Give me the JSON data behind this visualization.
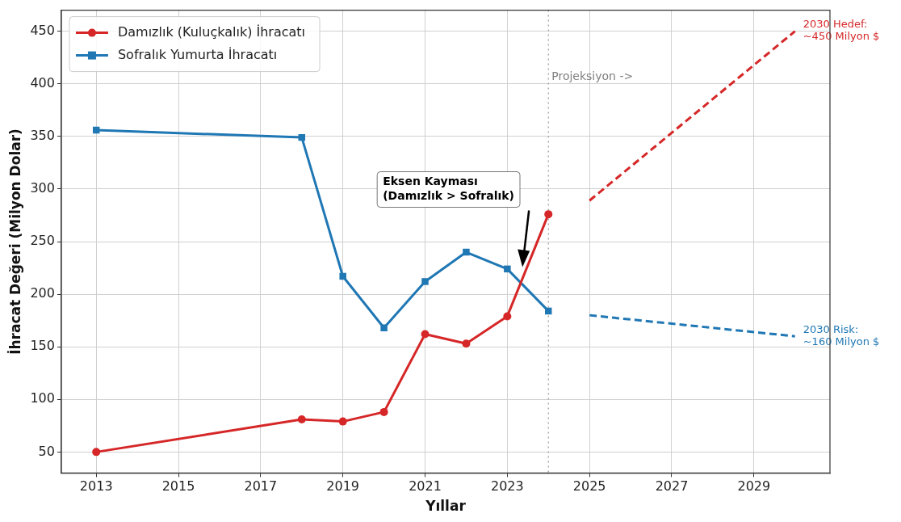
{
  "chart_data": {
    "type": "line",
    "xlabel": "Yıllar",
    "ylabel": "İhracat Değeri (Milyon Dolar)",
    "xlim": [
      2012.15,
      2030.85
    ],
    "ylim": [
      30,
      470
    ],
    "xticks": [
      2013,
      2015,
      2017,
      2019,
      2021,
      2023,
      2025,
      2027,
      2029
    ],
    "yticks": [
      50,
      100,
      150,
      200,
      250,
      300,
      350,
      400,
      450
    ],
    "grid": true,
    "legend": "top left",
    "series": [
      {
        "name": "Damızlık (Kuluçkalık) İhracatı",
        "color": "#d62728",
        "marker": "circle",
        "line_style": "solid",
        "x": [
          2013,
          2018,
          2019,
          2020,
          2021,
          2022,
          2023,
          2024
        ],
        "values": [
          50,
          81,
          79,
          88,
          162,
          153,
          179,
          276
        ]
      },
      {
        "name": "Sofralık Yumurta İhracatı",
        "color": "#1f77b4",
        "marker": "square",
        "line_style": "solid",
        "x": [
          2013,
          2018,
          2019,
          2020,
          2021,
          2022,
          2023,
          2024
        ],
        "values": [
          356,
          349,
          217,
          168,
          212,
          240,
          224,
          184
        ]
      },
      {
        "name": "2030 Hedef:\n~450 Milyon $",
        "color": "#d62728",
        "marker": "none",
        "line_style": "dashed",
        "x": [
          2025,
          2030
        ],
        "values": [
          289,
          450
        ]
      },
      {
        "name": "2030 Risk:\n~160 Milyon $",
        "color": "#1f77b4",
        "marker": "none",
        "line_style": "dashed",
        "x": [
          2025,
          2030
        ],
        "values": [
          180,
          160
        ]
      }
    ],
    "ref_lines": [
      {
        "axis": "x",
        "value": 2024,
        "label": "Projeksiyon ->",
        "color": "#999999",
        "line_style": "dotted"
      }
    ],
    "annotations": [
      "Eksen Kayması\n(Damızlık > Sofralık)"
    ]
  }
}
